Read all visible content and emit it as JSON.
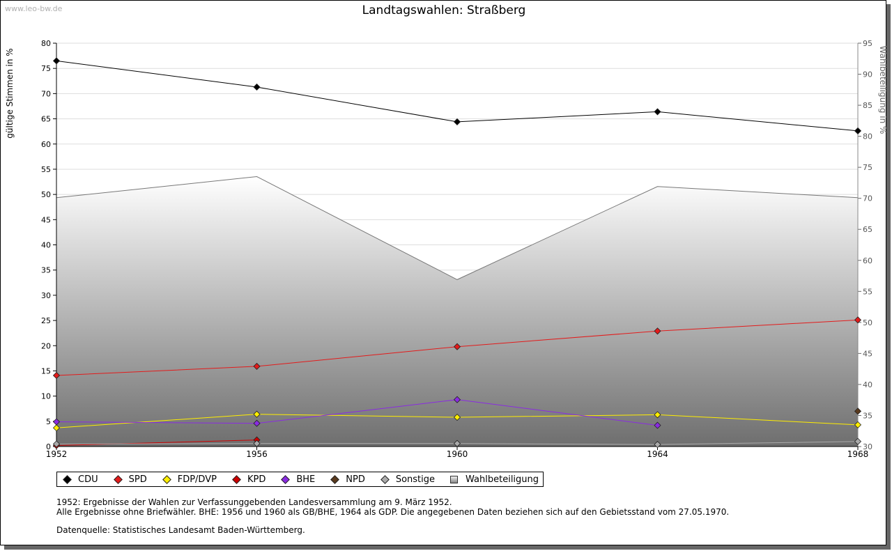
{
  "watermark": "www.leo-bw.de",
  "title": "Landtagswahlen: Straßberg",
  "legend_items": [
    {
      "label": "CDU",
      "color": "#000000",
      "shape": "diamond"
    },
    {
      "label": "SPD",
      "color": "#e31b1b",
      "shape": "diamond"
    },
    {
      "label": "FDP/DVP",
      "color": "#ffee00",
      "shape": "diamond"
    },
    {
      "label": "KPD",
      "color": "#cc0000",
      "shape": "diamond"
    },
    {
      "label": "BHE",
      "color": "#8a2be2",
      "shape": "diamond"
    },
    {
      "label": "NPD",
      "color": "#5a3a1e",
      "shape": "diamond"
    },
    {
      "label": "Sonstige",
      "color": "#aaaaaa",
      "shape": "diamond"
    },
    {
      "label": "Wahlbeteiligung",
      "color": "#999999",
      "shape": "square"
    }
  ],
  "notes": {
    "line1": "1952: Ergebnisse der Wahlen zur Verfassunggebenden Landesversammlung am 9. März 1952.",
    "line2": "Alle Ergebnisse ohne Briefwähler. BHE: 1956 und 1960 als GB/BHE, 1964 als GDP. Die angegebenen Daten beziehen sich auf den Gebietsstand vom 27.05.1970.",
    "source": "Datenquelle: Statistisches Landesamt Baden-Württemberg."
  },
  "chart_data": {
    "type": "line",
    "title": "Landtagswahlen: Straßberg",
    "x": [
      1952,
      1956,
      1960,
      1964,
      1968
    ],
    "xlabel": "",
    "ylabel": "gültige Stimmen in %",
    "ylabel_right": "Wahlbeteiligung in %",
    "ylim": [
      0,
      80
    ],
    "ylim_right": [
      30,
      95
    ],
    "yticks": [
      0,
      5,
      10,
      15,
      20,
      25,
      30,
      35,
      40,
      45,
      50,
      55,
      60,
      65,
      70,
      75,
      80
    ],
    "yticks_right": [
      30,
      35,
      40,
      45,
      50,
      55,
      60,
      65,
      70,
      75,
      80,
      85,
      90,
      95
    ],
    "grid": true,
    "legend_position": "bottom",
    "area": {
      "name": "Wahlbeteiligung",
      "axis": "right",
      "color": "#777777",
      "values": [
        70.1,
        73.5,
        56.9,
        71.9,
        70.1
      ]
    },
    "series": [
      {
        "name": "CDU",
        "color": "#000000",
        "values": [
          76.5,
          71.3,
          64.4,
          66.4,
          62.6
        ]
      },
      {
        "name": "SPD",
        "color": "#e31b1b",
        "values": [
          14.1,
          15.9,
          19.8,
          22.9,
          25.1
        ]
      },
      {
        "name": "FDP/DVP",
        "color": "#ffee00",
        "values": [
          3.7,
          6.4,
          5.8,
          6.3,
          4.3
        ]
      },
      {
        "name": "KPD",
        "color": "#cc0000",
        "values": [
          0.2,
          1.3,
          null,
          null,
          null
        ]
      },
      {
        "name": "BHE",
        "color": "#8a2be2",
        "values": [
          4.9,
          4.6,
          9.3,
          4.2,
          null
        ]
      },
      {
        "name": "NPD",
        "color": "#5a3a1e",
        "values": [
          null,
          null,
          null,
          null,
          7.0
        ]
      },
      {
        "name": "Sonstige",
        "color": "#aaaaaa",
        "values": [
          0.5,
          0.6,
          0.6,
          0.4,
          1.0
        ]
      }
    ]
  }
}
